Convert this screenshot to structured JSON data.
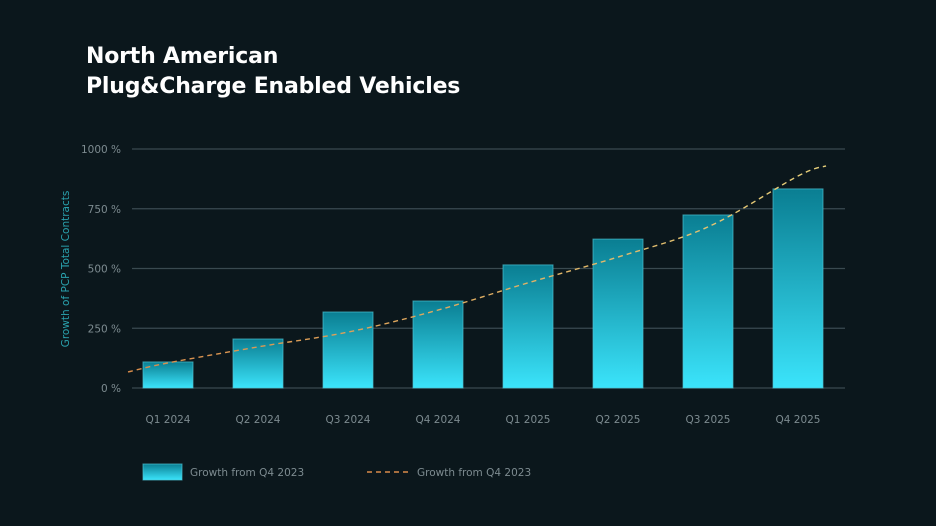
{
  "title": {
    "line1": "North American",
    "line2": "Plug&Charge Enabled Vehicles"
  },
  "colors": {
    "background": "#0b171c",
    "grid": "#3a4a50",
    "bar_top": "#0a7e92",
    "bar_bottom": "#3be4fb",
    "bar_border": "#4cc3d3",
    "trend_start": "#d98c4a",
    "trend_end": "#e6cf7a",
    "tick_text": "#7d8b90",
    "axis_label": "#2aa2ae"
  },
  "chart_data": {
    "type": "bar",
    "title": "North American Plug&Charge Enabled Vehicles",
    "xlabel": "",
    "ylabel": "Growth of PCP Total Contracts",
    "ylim": [
      0,
      1000
    ],
    "yticks": [
      0,
      250,
      500,
      750,
      1000
    ],
    "ytick_labels": [
      "0 %",
      "250 %",
      "500 %",
      "750 %",
      "1000 %"
    ],
    "grid": true,
    "categories": [
      "Q1 2024",
      "Q2 2024",
      "Q3 2024",
      "Q4 2024",
      "Q1 2025",
      "Q2 2025",
      "Q3 2025",
      "Q4 2025"
    ],
    "series": [
      {
        "name": "Growth from Q4 2023",
        "type": "bar",
        "values": [
          109,
          205,
          318,
          364,
          515,
          623,
          724,
          833
        ]
      },
      {
        "name": "Growth from Q4 2023",
        "type": "line",
        "style": "dashed",
        "x_start_value": 67,
        "values": [
          105,
          172,
          234,
          326,
          440,
          548,
          674,
          887
        ],
        "x_end_value": 929
      }
    ],
    "legend": {
      "placement": "bottom-left",
      "entries": [
        {
          "label": "Growth from Q4 2023",
          "marker": "bar"
        },
        {
          "label": "Growth from Q4 2023",
          "marker": "dashed-line"
        }
      ]
    }
  }
}
